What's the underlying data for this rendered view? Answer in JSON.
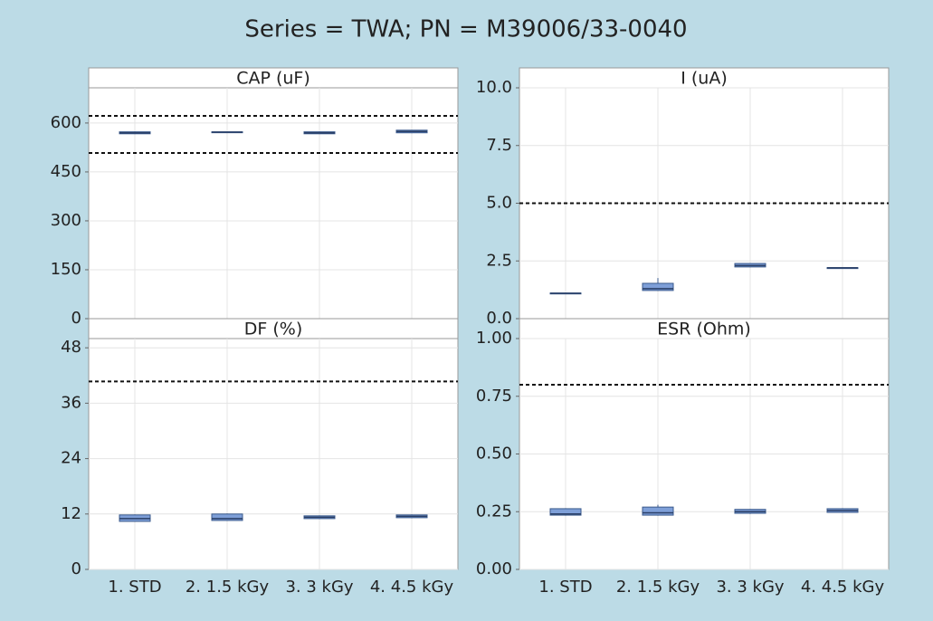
{
  "title": "Series = TWA; PN = M39006/33-0040",
  "categories": [
    "1. STD",
    "2. 1.5 kGy",
    "3. 3 kGy",
    "4. 4.5 kGy"
  ],
  "chart_data": [
    {
      "type": "box",
      "title": "CAP (uF)",
      "ylim": [
        0,
        708
      ],
      "yticks": [
        0,
        150,
        300,
        450,
        600
      ],
      "grid": true,
      "reference_lines": [
        622,
        508
      ],
      "color": "#7e9fd8",
      "boxes": [
        {
          "min": 566,
          "q1": 567,
          "median": 570,
          "q3": 573,
          "max": 574
        },
        {
          "min": 571,
          "q1": 571,
          "median": 572,
          "q3": 573,
          "max": 573
        },
        {
          "min": 566,
          "q1": 567,
          "median": 570,
          "q3": 573,
          "max": 574
        },
        {
          "min": 569,
          "q1": 570,
          "median": 574,
          "q3": 578,
          "max": 579
        }
      ]
    },
    {
      "type": "box",
      "title": "I (uA)",
      "ylim": [
        0,
        10
      ],
      "yticks": [
        {
          "value": 0,
          "label": "0.0"
        },
        2.5,
        {
          "value": 5,
          "label": "5.0"
        },
        7.5,
        {
          "value": 10,
          "label": "10.0"
        }
      ],
      "grid": true,
      "reference_lines": [
        5
      ],
      "color": "#7e9fd8",
      "boxes": [
        {
          "min": 1.08,
          "q1": 1.09,
          "median": 1.1,
          "q3": 1.11,
          "max": 1.12
        },
        {
          "min": 1.2,
          "q1": 1.22,
          "median": 1.3,
          "q3": 1.53,
          "max": 1.76
        },
        {
          "min": 2.22,
          "q1": 2.24,
          "median": 2.3,
          "q3": 2.39,
          "max": 2.4
        },
        {
          "min": 2.18,
          "q1": 2.19,
          "median": 2.2,
          "q3": 2.21,
          "max": 2.22
        }
      ]
    },
    {
      "type": "box",
      "title": "DF (%)",
      "ylim": [
        0,
        50
      ],
      "yticks": [
        0,
        12,
        24,
        36,
        48
      ],
      "grid": true,
      "reference_lines": [
        40.7
      ],
      "color": "#7e9fd8",
      "boxes": [
        {
          "min": 10.3,
          "q1": 10.4,
          "median": 11,
          "q3": 11.8,
          "max": 11.9
        },
        {
          "min": 10.5,
          "q1": 10.6,
          "median": 11,
          "q3": 12,
          "max": 12.1
        },
        {
          "min": 10.9,
          "q1": 11,
          "median": 11.3,
          "q3": 11.6,
          "max": 11.7
        },
        {
          "min": 11.1,
          "q1": 11.2,
          "median": 11.5,
          "q3": 11.8,
          "max": 11.9
        }
      ]
    },
    {
      "type": "box",
      "title": "ESR (Ohm)",
      "ylim": [
        0,
        1
      ],
      "yticks": [
        {
          "value": 0,
          "label": "0.00"
        },
        0.25,
        {
          "value": 0.5,
          "label": "0.50"
        },
        0.75,
        {
          "value": 1,
          "label": "1.00"
        }
      ],
      "grid": true,
      "reference_lines": [
        0.8
      ],
      "color": "#7e9fd8",
      "boxes": [
        {
          "min": 0.233,
          "q1": 0.235,
          "median": 0.24,
          "q3": 0.263,
          "max": 0.265
        },
        {
          "min": 0.233,
          "q1": 0.235,
          "median": 0.245,
          "q3": 0.27,
          "max": 0.28
        },
        {
          "min": 0.24,
          "q1": 0.243,
          "median": 0.25,
          "q3": 0.26,
          "max": 0.262
        },
        {
          "min": 0.245,
          "q1": 0.247,
          "median": 0.255,
          "q3": 0.263,
          "max": 0.265
        }
      ]
    }
  ]
}
